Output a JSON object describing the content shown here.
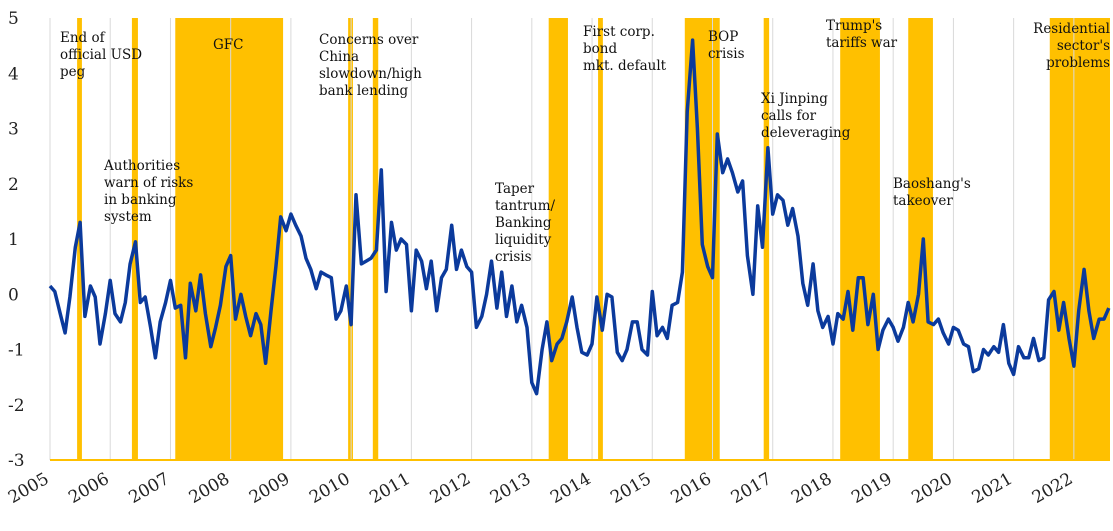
{
  "chart_data": {
    "type": "line",
    "x": [
      2005.0,
      2005.08,
      2005.17,
      2005.25,
      2005.33,
      2005.42,
      2005.5,
      2005.58,
      2005.67,
      2005.75,
      2005.83,
      2005.92,
      2006.0,
      2006.08,
      2006.17,
      2006.25,
      2006.33,
      2006.42,
      2006.5,
      2006.58,
      2006.67,
      2006.75,
      2006.83,
      2006.92,
      2007.0,
      2007.08,
      2007.17,
      2007.25,
      2007.33,
      2007.42,
      2007.5,
      2007.58,
      2007.67,
      2007.75,
      2007.83,
      2007.92,
      2008.0,
      2008.08,
      2008.17,
      2008.25,
      2008.33,
      2008.42,
      2008.5,
      2008.58,
      2008.67,
      2008.75,
      2008.83,
      2008.92,
      2009.0,
      2009.08,
      2009.17,
      2009.25,
      2009.33,
      2009.42,
      2009.5,
      2009.58,
      2009.67,
      2009.75,
      2009.83,
      2009.92,
      2010.0,
      2010.08,
      2010.17,
      2010.25,
      2010.33,
      2010.42,
      2010.5,
      2010.58,
      2010.67,
      2010.75,
      2010.83,
      2010.92,
      2011.0,
      2011.08,
      2011.17,
      2011.25,
      2011.33,
      2011.42,
      2011.5,
      2011.58,
      2011.67,
      2011.75,
      2011.83,
      2011.92,
      2012.0,
      2012.08,
      2012.17,
      2012.25,
      2012.33,
      2012.42,
      2012.5,
      2012.58,
      2012.67,
      2012.75,
      2012.83,
      2012.92,
      2013.0,
      2013.08,
      2013.17,
      2013.25,
      2013.33,
      2013.42,
      2013.5,
      2013.58,
      2013.67,
      2013.75,
      2013.83,
      2013.92,
      2014.0,
      2014.08,
      2014.17,
      2014.25,
      2014.33,
      2014.42,
      2014.5,
      2014.58,
      2014.67,
      2014.75,
      2014.83,
      2014.92,
      2015.0,
      2015.08,
      2015.17,
      2015.25,
      2015.33,
      2015.42,
      2015.5,
      2015.58,
      2015.67,
      2015.75,
      2015.83,
      2015.92,
      2016.0,
      2016.08,
      2016.17,
      2016.25,
      2016.33,
      2016.42,
      2016.5,
      2016.58,
      2016.67,
      2016.75,
      2016.83,
      2016.92,
      2017.0,
      2017.08,
      2017.17,
      2017.25,
      2017.33,
      2017.42,
      2017.5,
      2017.58,
      2017.67,
      2017.75,
      2017.83,
      2017.92,
      2018.0,
      2018.08,
      2018.17,
      2018.25,
      2018.33,
      2018.42,
      2018.5,
      2018.58,
      2018.67,
      2018.75,
      2018.83,
      2018.92,
      2019.0,
      2019.08,
      2019.17,
      2019.25,
      2019.33,
      2019.42,
      2019.5,
      2019.58,
      2019.67,
      2019.75,
      2019.83,
      2019.92,
      2020.0,
      2020.08,
      2020.17,
      2020.25,
      2020.33,
      2020.42,
      2020.5,
      2020.58,
      2020.67,
      2020.75,
      2020.83,
      2020.92,
      2021.0,
      2021.08,
      2021.17,
      2021.25,
      2021.33,
      2021.42,
      2021.5,
      2021.58,
      2021.67,
      2021.75,
      2021.83,
      2021.92,
      2022.0,
      2022.08,
      2022.17,
      2022.25,
      2022.33,
      2022.42,
      2022.5,
      2022.58
    ],
    "series": [
      {
        "color": "#0b3a9c",
        "values": [
          0.15,
          0.05,
          -0.35,
          -0.7,
          -0.05,
          0.85,
          1.3,
          -0.4,
          0.15,
          -0.05,
          -0.9,
          -0.35,
          0.25,
          -0.35,
          -0.5,
          -0.15,
          0.55,
          0.95,
          -0.15,
          -0.05,
          -0.6,
          -1.15,
          -0.5,
          -0.15,
          0.25,
          -0.25,
          -0.2,
          -1.15,
          0.2,
          -0.3,
          0.35,
          -0.35,
          -0.95,
          -0.6,
          -0.2,
          0.5,
          0.7,
          -0.45,
          0.0,
          -0.4,
          -0.75,
          -0.35,
          -0.55,
          -1.25,
          -0.3,
          0.5,
          1.4,
          1.15,
          1.45,
          1.25,
          1.05,
          0.65,
          0.45,
          0.1,
          0.4,
          0.35,
          0.3,
          -0.45,
          -0.3,
          0.15,
          -0.55,
          1.8,
          0.55,
          0.6,
          0.65,
          0.8,
          2.25,
          0.05,
          1.3,
          0.8,
          1.0,
          0.9,
          -0.3,
          0.8,
          0.6,
          0.1,
          0.6,
          -0.3,
          0.3,
          0.45,
          1.25,
          0.45,
          0.8,
          0.5,
          0.4,
          -0.6,
          -0.4,
          0.0,
          0.6,
          -0.25,
          0.4,
          -0.4,
          0.15,
          -0.5,
          -0.2,
          -0.6,
          -1.6,
          -1.8,
          -1.0,
          -0.5,
          -1.2,
          -0.9,
          -0.8,
          -0.5,
          -0.05,
          -0.6,
          -1.05,
          -1.1,
          -0.9,
          -0.05,
          -0.65,
          0.0,
          -0.05,
          -1.05,
          -1.2,
          -1.0,
          -0.5,
          -0.5,
          -1.0,
          -1.1,
          0.05,
          -0.75,
          -0.6,
          -0.8,
          -0.2,
          -0.15,
          0.4,
          3.3,
          4.6,
          3.0,
          0.9,
          0.5,
          0.3,
          2.9,
          2.2,
          2.45,
          2.2,
          1.85,
          2.05,
          0.7,
          0.0,
          1.6,
          0.85,
          2.65,
          1.45,
          1.8,
          1.7,
          1.25,
          1.55,
          1.05,
          0.2,
          -0.2,
          0.55,
          -0.3,
          -0.6,
          -0.4,
          -0.9,
          -0.35,
          -0.45,
          0.05,
          -0.65,
          0.3,
          0.3,
          -0.55,
          0.0,
          -1.0,
          -0.65,
          -0.45,
          -0.6,
          -0.85,
          -0.6,
          -0.15,
          -0.5,
          0.0,
          1.0,
          -0.5,
          -0.55,
          -0.45,
          -0.7,
          -0.9,
          -0.6,
          -0.65,
          -0.9,
          -0.95,
          -1.4,
          -1.35,
          -1.0,
          -1.1,
          -0.95,
          -1.05,
          -0.55,
          -1.25,
          -1.45,
          -0.95,
          -1.15,
          -1.15,
          -0.8,
          -1.2,
          -1.15,
          -0.1,
          0.05,
          -0.65,
          -0.15,
          -0.8,
          -1.3,
          -0.3,
          0.45,
          -0.3,
          -0.8,
          -0.45,
          -0.45,
          -0.25
        ]
      }
    ],
    "shaded_periods": [
      [
        2005.45,
        2005.53
      ],
      [
        2006.36,
        2006.46
      ],
      [
        2007.08,
        2008.87
      ],
      [
        2009.95,
        2010.03
      ],
      [
        2010.36,
        2010.45
      ],
      [
        2013.28,
        2013.6
      ],
      [
        2014.1,
        2014.18
      ],
      [
        2015.54,
        2016.12
      ],
      [
        2016.85,
        2016.94
      ],
      [
        2018.12,
        2018.78
      ],
      [
        2019.25,
        2019.66
      ],
      [
        2021.6,
        2022.6
      ]
    ],
    "shade_color": "#ffc000",
    "annotations": [
      [
        "End of",
        "official USD",
        "peg"
      ],
      [
        "Authorities",
        "warn of risks",
        "in banking",
        "system"
      ],
      [
        "GFC"
      ],
      [
        "Concerns over",
        "China",
        "slowdown/high",
        "bank lending"
      ],
      [
        "Taper",
        "tantrum/",
        "Banking",
        "liquidity",
        "crisis"
      ],
      [
        "First corp.",
        "bond",
        "mkt. default"
      ],
      [
        "BOP",
        "crisis"
      ],
      [
        "Xi Jinping",
        "calls for",
        "deleveraging"
      ],
      [
        "Trump's",
        "tariffs war"
      ],
      [
        "Baoshang's",
        "takeover"
      ],
      [
        "Residential",
        "sector's",
        "problems"
      ]
    ],
    "xlim": [
      2005,
      2022.6
    ],
    "xticks": [
      2005,
      2006,
      2007,
      2008,
      2009,
      2010,
      2011,
      2012,
      2013,
      2014,
      2015,
      2016,
      2017,
      2018,
      2019,
      2020,
      2021,
      2022
    ],
    "ylim": [
      -3,
      5
    ],
    "yticks": [
      5,
      4,
      3,
      2,
      1,
      0,
      -1,
      -2,
      -3
    ],
    "grid": true
  }
}
